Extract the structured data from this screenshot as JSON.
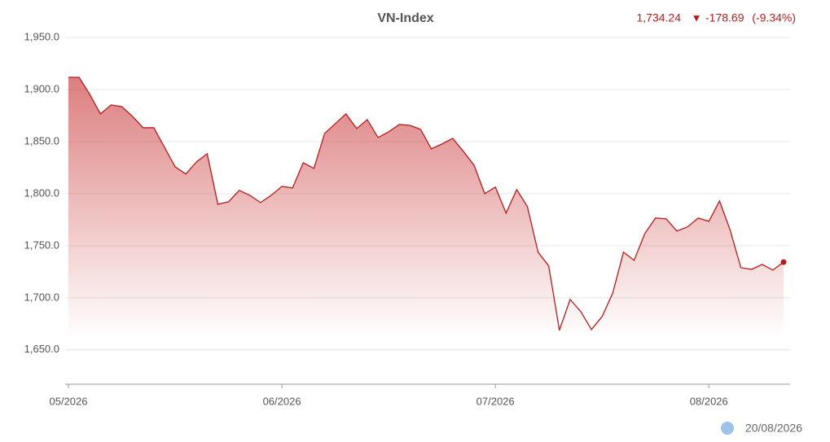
{
  "chart_data": {
    "type": "area",
    "title": "VN-Index",
    "annotations": {
      "last": "1,734.24",
      "arrow": "▼",
      "change": "-178.69",
      "change_pct": "(-9.34%)",
      "date": "20/08/2026"
    },
    "color": "#b71c1c",
    "categories": [
      "05/2026",
      null,
      null,
      null,
      null,
      null,
      null,
      null,
      null,
      null,
      null,
      null,
      null,
      null,
      null,
      null,
      null,
      null,
      null,
      null,
      "06/2026",
      null,
      null,
      null,
      null,
      null,
      null,
      null,
      null,
      null,
      null,
      null,
      null,
      null,
      null,
      null,
      null,
      null,
      null,
      null,
      "07/2026",
      null,
      null,
      null,
      null,
      null,
      null,
      null,
      null,
      null,
      null,
      null,
      null,
      null,
      null,
      null,
      null,
      null,
      null,
      null,
      "08/2026",
      null,
      null,
      null,
      null,
      null,
      null,
      null
    ],
    "values": [
      1911.7,
      1911.7,
      1895.3,
      1876.6,
      1885.2,
      1883.6,
      1874.2,
      1863.3,
      1863.3,
      1844.5,
      1825.8,
      1818.8,
      1830.5,
      1838.3,
      1789.8,
      1792.2,
      1803.1,
      1798.4,
      1791.4,
      1798.4,
      1807.0,
      1805.5,
      1829.7,
      1824.2,
      1857.8,
      1867.2,
      1876.6,
      1862.5,
      1871.1,
      1853.9,
      1859.4,
      1866.4,
      1865.6,
      1861.7,
      1843.0,
      1847.7,
      1853.1,
      1840.6,
      1827.3,
      1800.0,
      1806.3,
      1781.3,
      1803.9,
      1787.5,
      1743.8,
      1730.5,
      1668.8,
      1698.4,
      1686.7,
      1669.5,
      1682.0,
      1704.7,
      1743.8,
      1735.9,
      1761.7,
      1776.6,
      1775.8,
      1764.1,
      1768.0,
      1776.6,
      1773.4,
      1793.0,
      1764.8,
      1728.9,
      1727.3,
      1732.0,
      1726.6,
      1734.24
    ],
    "ylim": [
      1617,
      1950
    ],
    "yticks": [
      {
        "value": 1650,
        "label": "1,650.0"
      },
      {
        "value": 1700,
        "label": "1,700.0"
      },
      {
        "value": 1750,
        "label": "1,750.0"
      },
      {
        "value": 1800,
        "label": "1,800.0"
      },
      {
        "value": 1850,
        "label": "1,850.0"
      },
      {
        "value": 1900,
        "label": "1,900.0"
      },
      {
        "value": 1950,
        "label": "1,950.0"
      }
    ],
    "grid": true
  }
}
